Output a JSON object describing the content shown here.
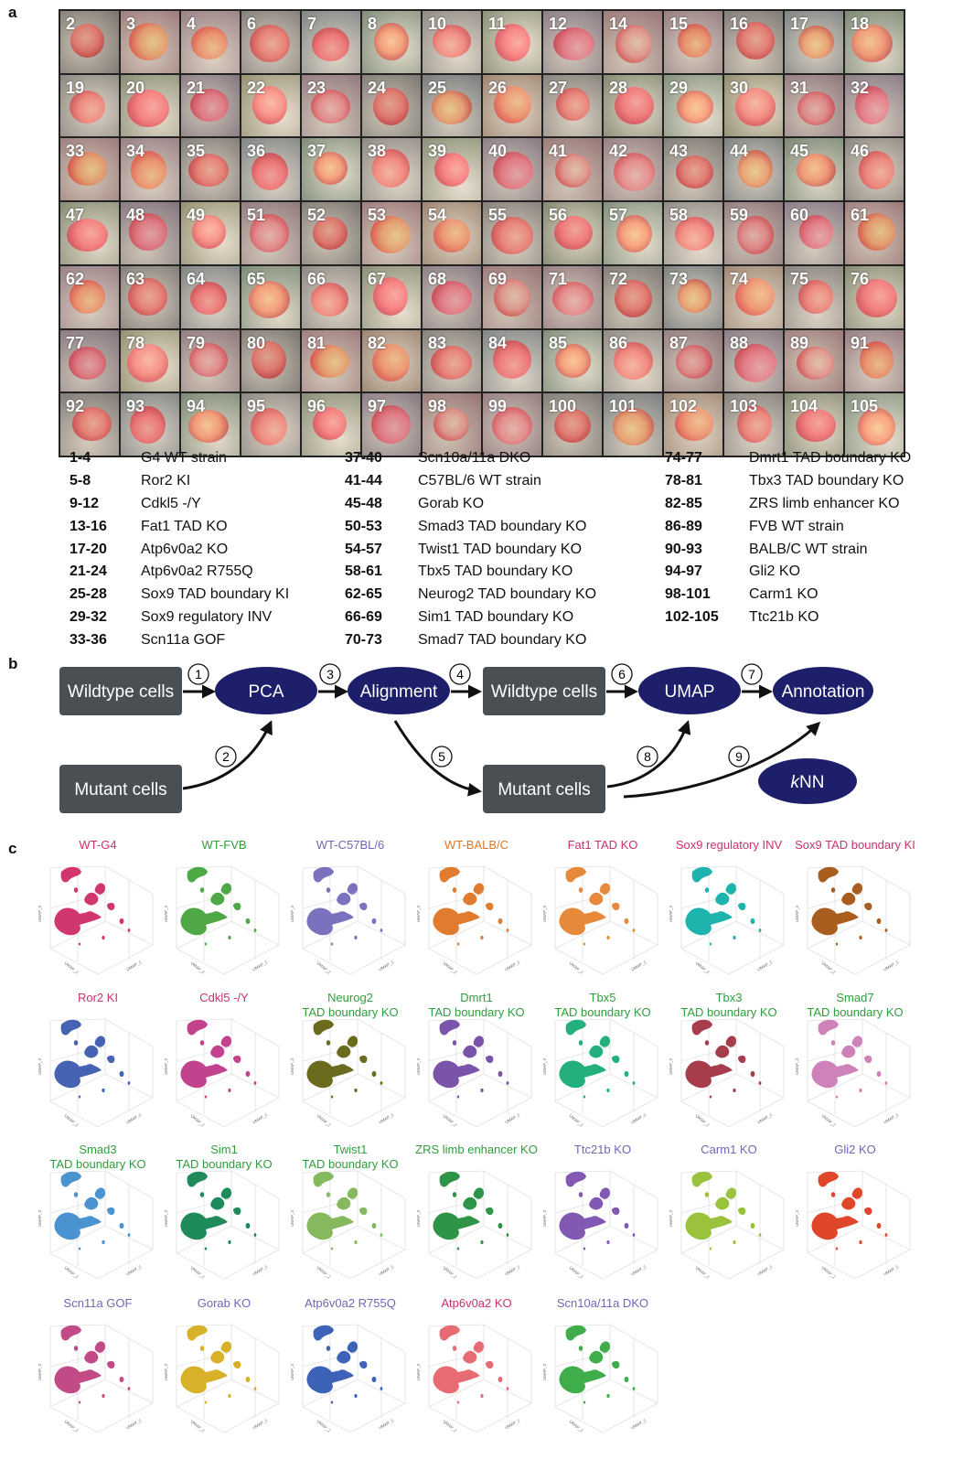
{
  "panels": {
    "a": "a",
    "b": "b",
    "c": "c"
  },
  "grid_numbers": [
    "2",
    "3",
    "4",
    "6",
    "7",
    "8",
    "10",
    "11",
    "12",
    "14",
    "15",
    "16",
    "17",
    "18",
    "19",
    "20",
    "21",
    "22",
    "23",
    "24",
    "25",
    "26",
    "27",
    "28",
    "29",
    "30",
    "31",
    "32",
    "33",
    "34",
    "35",
    "36",
    "37",
    "38",
    "39",
    "40",
    "41",
    "42",
    "43",
    "44",
    "45",
    "46",
    "47",
    "48",
    "49",
    "51",
    "52",
    "53",
    "54",
    "55",
    "56",
    "57",
    "58",
    "59",
    "60",
    "61",
    "62",
    "63",
    "64",
    "65",
    "66",
    "67",
    "68",
    "69",
    "71",
    "72",
    "73",
    "74",
    "75",
    "76",
    "77",
    "78",
    "79",
    "80",
    "81",
    "82",
    "83",
    "84",
    "85",
    "86",
    "87",
    "88",
    "89",
    "91",
    "92",
    "93",
    "94",
    "95",
    "96",
    "97",
    "98",
    "99",
    "100",
    "101",
    "102",
    "103",
    "104",
    "105"
  ],
  "legend": {
    "col1": [
      {
        "range": "1-4",
        "label": "G4 WT strain"
      },
      {
        "range": "5-8",
        "label": "Ror2 KI"
      },
      {
        "range": "9-12",
        "label": "Cdkl5 -/Y"
      },
      {
        "range": "13-16",
        "label": "Fat1 TAD KO"
      },
      {
        "range": "17-20",
        "label": "Atp6v0a2 KO"
      },
      {
        "range": "21-24",
        "label": "Atp6v0a2 R755Q"
      },
      {
        "range": "25-28",
        "label": "Sox9 TAD boundary KI"
      },
      {
        "range": "29-32",
        "label": "Sox9 regulatory INV"
      },
      {
        "range": "33-36",
        "label": "Scn11a GOF"
      }
    ],
    "col2": [
      {
        "range": "37-40",
        "label": "Scn10a/11a DKO"
      },
      {
        "range": "41-44",
        "label": "C57BL/6 WT strain"
      },
      {
        "range": "45-48",
        "label": "Gorab KO"
      },
      {
        "range": "50-53",
        "label": "Smad3 TAD boundary KO"
      },
      {
        "range": "54-57",
        "label": "Twist1 TAD boundary KO"
      },
      {
        "range": "58-61",
        "label": "Tbx5 TAD boundary KO"
      },
      {
        "range": "62-65",
        "label": "Neurog2 TAD boundary KO"
      },
      {
        "range": "66-69",
        "label": "Sim1 TAD boundary KO"
      },
      {
        "range": "70-73",
        "label": "Smad7 TAD boundary KO"
      }
    ],
    "col3": [
      {
        "range": "74-77",
        "label": "Dmrt1 TAD boundary KO"
      },
      {
        "range": "78-81",
        "label": "Tbx3 TAD boundary KO"
      },
      {
        "range": "82-85",
        "label": "ZRS limb enhancer KO"
      },
      {
        "range": "86-89",
        "label": "FVB WT strain"
      },
      {
        "range": "90-93",
        "label": "BALB/C WT strain"
      },
      {
        "range": "94-97",
        "label": "Gli2 KO"
      },
      {
        "range": "98-101",
        "label": "Carm1 KO"
      },
      {
        "range": "102-105",
        "label": "Ttc21b KO"
      }
    ]
  },
  "flow": {
    "wildtype_cells_1": "Wildtype cells",
    "mutant_cells_1": "Mutant cells",
    "pca": "PCA",
    "alignment": "Alignment",
    "wildtype_cells_2": "Wildtype cells",
    "mutant_cells_2": "Mutant cells",
    "umap": "UMAP",
    "annotation": "Annotation",
    "knn_italic": "k",
    "knn_rest": "NN",
    "steps": [
      "1",
      "2",
      "3",
      "4",
      "5",
      "6",
      "7",
      "8",
      "9"
    ],
    "box_color": "#4a4f54",
    "oval_color": "#1d1f6b"
  },
  "umap_axis_labels": {
    "x": "UMAP_1",
    "y": "UMAP_2",
    "z": "UMAP_3"
  },
  "umaps": [
    {
      "t1": "WT-G4",
      "t2": "",
      "title_color": "#c7336b",
      "color": "#d2366e"
    },
    {
      "t1": "WT-FVB",
      "t2": "",
      "title_color": "#2f9e3c",
      "color": "#4ea846"
    },
    {
      "t1": "WT-C57BL/6",
      "t2": "",
      "title_color": "#6f67b5",
      "color": "#7b72bf"
    },
    {
      "t1": "WT-BALB/C",
      "t2": "",
      "title_color": "#d9772b",
      "color": "#e07b2f"
    },
    {
      "t1": "Fat1 TAD KO",
      "t2": "",
      "title_color": "#c7336b",
      "color": "#e6893a"
    },
    {
      "t1": "Sox9 regulatory INV",
      "t2": "",
      "title_color": "#c7336b",
      "color": "#1fb3ad"
    },
    {
      "t1": "Sox9 TAD boundary KI",
      "t2": "",
      "title_color": "#c7336b",
      "color": "#a95d1e"
    },
    {
      "t1": "Ror2 KI",
      "t2": "",
      "title_color": "#c7336b",
      "color": "#4562b3"
    },
    {
      "t1": "Cdkl5 -/Y",
      "t2": "",
      "title_color": "#c7336b",
      "color": "#c2428e"
    },
    {
      "t1": "Neurog2",
      "t2": "TAD boundary KO",
      "title_color": "#2f9e3c",
      "color": "#6b6b1e"
    },
    {
      "t1": "Dmrt1",
      "t2": "TAD boundary KO",
      "title_color": "#2f9e3c",
      "color": "#7a54a8"
    },
    {
      "t1": "Tbx5",
      "t2": "TAD boundary KO",
      "title_color": "#2f9e3c",
      "color": "#23b07c"
    },
    {
      "t1": "Tbx3",
      "t2": "TAD boundary KO",
      "title_color": "#2f9e3c",
      "color": "#a63c4c"
    },
    {
      "t1": "Smad7",
      "t2": "TAD boundary KO",
      "title_color": "#2f9e3c",
      "color": "#cf82b9"
    },
    {
      "t1": "Smad3",
      "t2": "TAD boundary KO",
      "title_color": "#2f9e3c",
      "color": "#4a93d1"
    },
    {
      "t1": "Sim1",
      "t2": "TAD boundary KO",
      "title_color": "#2f9e3c",
      "color": "#1f8a5a"
    },
    {
      "t1": "Twist1",
      "t2": "TAD boundary KO",
      "title_color": "#2f9e3c",
      "color": "#86b85e"
    },
    {
      "t1": "ZRS limb enhancer KO",
      "t2": "",
      "title_color": "#2f9e3c",
      "color": "#2e9447"
    },
    {
      "t1": "Ttc21b KO",
      "t2": "",
      "title_color": "#6f67b5",
      "color": "#8159b3"
    },
    {
      "t1": "Carm1 KO",
      "t2": "",
      "title_color": "#6f67b5",
      "color": "#9bc23c"
    },
    {
      "t1": "Gli2 KO",
      "t2": "",
      "title_color": "#6f67b5",
      "color": "#e0472a"
    },
    {
      "t1": "Scn11a GOF",
      "t2": "",
      "title_color": "#6f67b5",
      "color": "#c24a86"
    },
    {
      "t1": "Gorab KO",
      "t2": "",
      "title_color": "#6f67b5",
      "color": "#d8b12a"
    },
    {
      "t1": "Atp6v0a2 R755Q",
      "t2": "",
      "title_color": "#6f67b5",
      "color": "#3c63b8"
    },
    {
      "t1": "Atp6v0a2 KO",
      "t2": "",
      "title_color": "#c7336b",
      "color": "#e86a72"
    },
    {
      "t1": "Scn10a/11a DKO",
      "t2": "",
      "title_color": "#6f67b5",
      "color": "#3fae4a"
    }
  ]
}
